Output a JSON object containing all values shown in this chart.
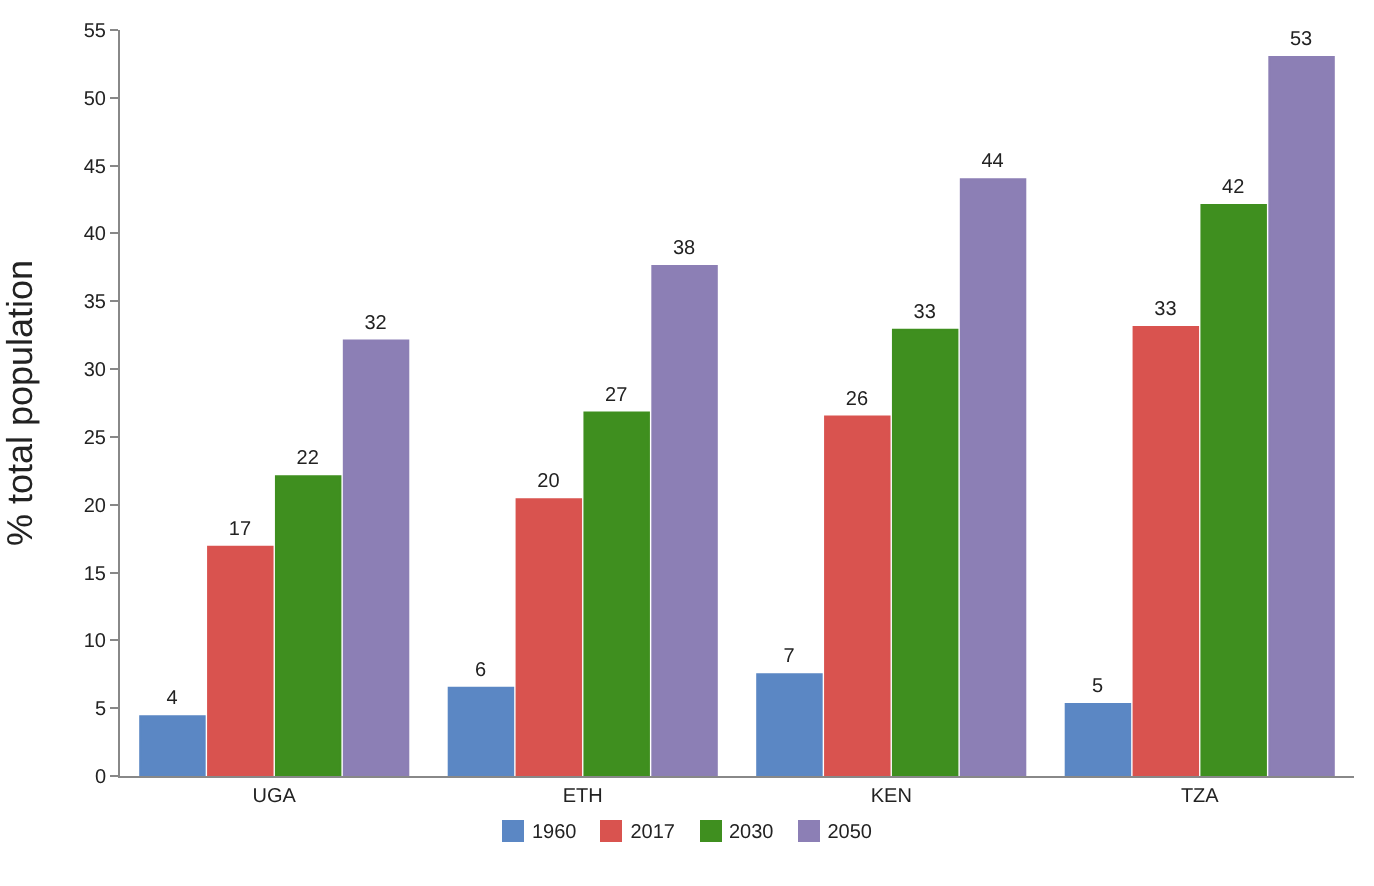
{
  "chart_data": {
    "type": "bar",
    "ylabel": "% total population",
    "categories": [
      "UGA",
      "ETH",
      "KEN",
      "TZA"
    ],
    "series": [
      {
        "name": "1960",
        "color": "#5b87c4",
        "values": [
          4.4,
          6.5,
          7.5,
          5.3
        ],
        "value_labels": [
          "4",
          "6",
          "7",
          "5"
        ]
      },
      {
        "name": "2017",
        "color": "#d9534f",
        "values": [
          16.9,
          20.4,
          26.5,
          33.1
        ],
        "value_labels": [
          "17",
          "20",
          "26",
          "33"
        ]
      },
      {
        "name": "2030",
        "color": "#3f8f1f",
        "values": [
          22.1,
          26.8,
          32.9,
          42.1
        ],
        "value_labels": [
          "22",
          "27",
          "33",
          "42"
        ]
      },
      {
        "name": "2050",
        "color": "#8c7fb5",
        "values": [
          32.1,
          37.6,
          44,
          53
        ],
        "value_labels": [
          "32",
          "38",
          "44",
          "53"
        ]
      }
    ],
    "ylim": [
      0,
      55
    ],
    "yticks": [
      0,
      5,
      10,
      15,
      20,
      25,
      30,
      35,
      40,
      45,
      50,
      55
    ],
    "grid": false,
    "legend": "bottom"
  }
}
